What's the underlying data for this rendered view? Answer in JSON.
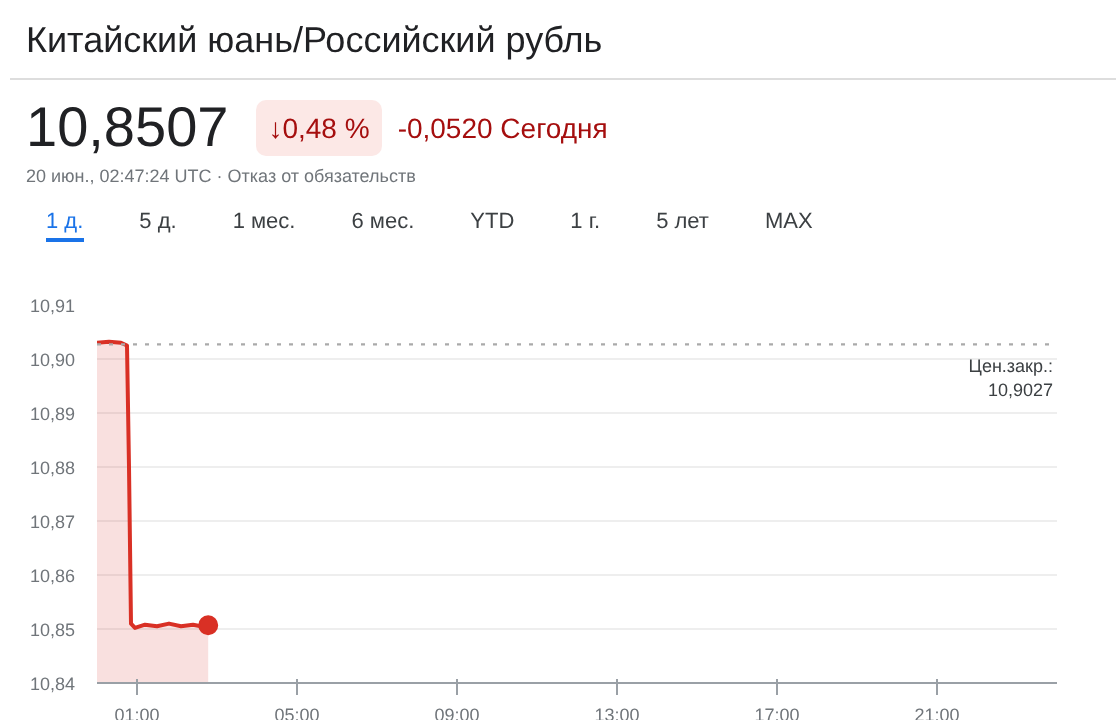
{
  "chart_data": {
    "type": "area",
    "title": "Китайский юань/Российский рубль",
    "annotations": [
      "10,8507",
      "↓0,48 %",
      "-0,0520 Сегодня",
      "20 июн., 02:47:24 UTC · Отказ от обязательств",
      "1 д.",
      "5 д.",
      "1 мес.",
      "6 мес.",
      "YTD",
      "1 г.",
      "5 лет",
      "MAX"
    ],
    "series": [
      {
        "color": "#d93025",
        "x": [
          0,
          0.3,
          0.6,
          0.75,
          0.8,
          0.85,
          0.95,
          1.2,
          1.5,
          1.8,
          2.1,
          2.4,
          2.6,
          2.78
        ],
        "values": [
          10.903,
          10.9032,
          10.903,
          10.9025,
          10.88,
          10.851,
          10.8502,
          10.8508,
          10.8505,
          10.851,
          10.8505,
          10.8508,
          10.8505,
          10.8507
        ]
      },
      {
        "type": "scatter",
        "color": "#d93025",
        "x": [
          2.78
        ],
        "values": [
          10.8507
        ],
        "marker": "circle"
      }
    ],
    "xlim": [
      0,
      24
    ],
    "ylim": [
      10.84,
      10.91
    ],
    "xticks": [
      {
        "value": 1,
        "label": "01:00"
      },
      {
        "value": 5,
        "label": "05:00"
      },
      {
        "value": 9,
        "label": "09:00"
      },
      {
        "value": 13,
        "label": "13:00"
      },
      {
        "value": 17,
        "label": "17:00"
      },
      {
        "value": 21,
        "label": "21:00"
      }
    ],
    "yticks": [
      {
        "value": 10.84,
        "label": "10,84"
      },
      {
        "value": 10.85,
        "label": "10,85"
      },
      {
        "value": 10.86,
        "label": "10,86"
      },
      {
        "value": 10.87,
        "label": "10,87"
      },
      {
        "value": 10.88,
        "label": "10,88"
      },
      {
        "value": 10.89,
        "label": "10,89"
      },
      {
        "value": 10.9,
        "label": "10,90"
      },
      {
        "value": 10.91,
        "label": "10,91"
      }
    ],
    "ref_lines": [
      {
        "axis": "y",
        "value": 10.9027,
        "label": "Цен.закр.:\n10,9027",
        "color": "#aaaaaa",
        "line_style": "dotted"
      }
    ],
    "grid": "y"
  }
}
